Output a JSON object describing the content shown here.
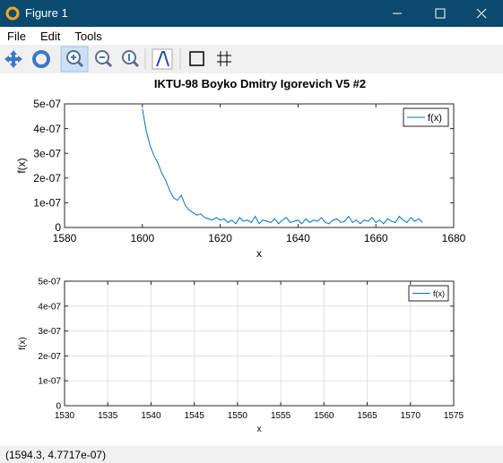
{
  "window_title": "Figure 1",
  "menu": [
    "File",
    "Edit",
    "Tools"
  ],
  "chart_data": [
    {
      "type": "line",
      "title": "IKTU-98 Boyko Dmitry Igorevich V5 #2",
      "x_label": "x",
      "y_label": "f(x)",
      "x": [
        1600,
        1601,
        1602,
        1603,
        1604,
        1605,
        1606,
        1607,
        1608,
        1609,
        1610,
        1611,
        1612,
        1613,
        1614,
        1615,
        1616,
        1617,
        1618,
        1619,
        1620,
        1621,
        1622,
        1623,
        1624,
        1625,
        1626,
        1627,
        1628,
        1629,
        1630,
        1631,
        1632,
        1633,
        1634,
        1635,
        1636,
        1637,
        1638,
        1639,
        1640,
        1641,
        1642,
        1643,
        1644,
        1645,
        1646,
        1647,
        1648,
        1649,
        1650,
        1651,
        1652,
        1653,
        1654,
        1655,
        1656,
        1657,
        1658,
        1659,
        1660,
        1661,
        1662,
        1663,
        1664,
        1665,
        1666,
        1667,
        1668,
        1669,
        1670,
        1671,
        1672
      ],
      "series": [
        {
          "name": "f(x)",
          "color": "#0072bd",
          "values": [
            4.8e-07,
            3.9e-07,
            3.3e-07,
            2.9e-07,
            2.6e-07,
            2.2e-07,
            1.9e-07,
            1.5e-07,
            1.2e-07,
            1.1e-07,
            1.3e-07,
            9e-08,
            7e-08,
            6e-08,
            5e-08,
            5.5e-08,
            4e-08,
            3.5e-08,
            3e-08,
            4e-08,
            3e-08,
            3.5e-08,
            2e-08,
            3e-08,
            1.5e-08,
            4e-08,
            2.5e-08,
            3e-08,
            2e-08,
            4.5e-08,
            1.5e-08,
            3e-08,
            2.5e-08,
            2e-08,
            3.5e-08,
            1.5e-08,
            3e-08,
            4e-08,
            2e-08,
            2.5e-08,
            3e-08,
            1.5e-08,
            3.5e-08,
            2e-08,
            3e-08,
            2.5e-08,
            4e-08,
            2e-08,
            1.5e-08,
            3e-08,
            3.5e-08,
            2e-08,
            2.5e-08,
            4.5e-08,
            2e-08,
            3e-08,
            1.5e-08,
            3e-08,
            2.5e-08,
            4e-08,
            2e-08,
            3e-08,
            1.5e-08,
            3.5e-08,
            2.5e-08,
            2e-08,
            4.5e-08,
            3e-08,
            2e-08,
            4e-08,
            2.5e-08,
            3.5e-08,
            2e-08
          ]
        }
      ],
      "xlim": [
        1580,
        1680
      ],
      "xticks": [
        1580,
        1600,
        1620,
        1640,
        1660,
        1680
      ],
      "ylim": [
        0,
        5e-07
      ],
      "yticks": [
        0,
        {
          "value": 1e-07,
          "label": "1e-07"
        },
        {
          "value": 2e-07,
          "label": "2e-07"
        },
        {
          "value": 3e-07,
          "label": "3e-07"
        },
        {
          "value": 4e-07,
          "label": "4e-07"
        },
        {
          "value": 5e-07,
          "label": "5e-07"
        }
      ],
      "grid": false,
      "legend": "upper-right"
    },
    {
      "type": "line",
      "x_label": "x",
      "y_label": "f(x)",
      "x": [],
      "series": [
        {
          "name": "f(x)",
          "color": "#0072bd",
          "values": []
        }
      ],
      "xlim": [
        1530,
        1575
      ],
      "xticks": [
        1530,
        1535,
        1540,
        1545,
        1550,
        1555,
        1560,
        1565,
        1570,
        1575
      ],
      "ylim": [
        0,
        5e-07
      ],
      "yticks": [
        0,
        {
          "value": 1e-07,
          "label": "1e-07"
        },
        {
          "value": 2e-07,
          "label": "2e-07"
        },
        {
          "value": 3e-07,
          "label": "3e-07"
        },
        {
          "value": 4e-07,
          "label": "4e-07"
        },
        {
          "value": 5e-07,
          "label": "5e-07"
        }
      ],
      "grid": true,
      "legend": "upper-right"
    }
  ],
  "status": "(1594.3, 4.7717e-07)"
}
